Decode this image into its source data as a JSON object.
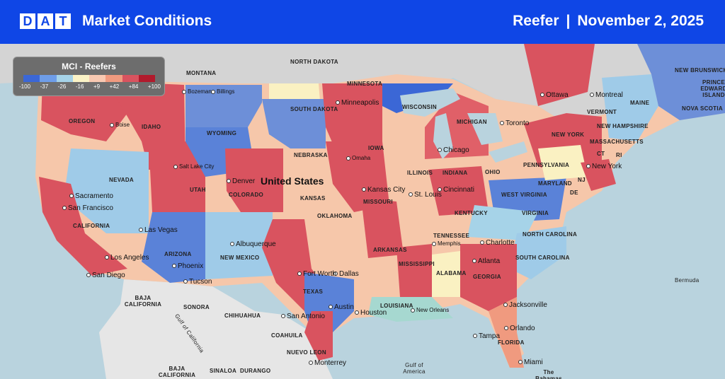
{
  "header": {
    "logo_letters": [
      "D",
      "A",
      "T"
    ],
    "title": "Market Conditions",
    "equipment": "Reefer",
    "separator": "|",
    "date": "November 2, 2025"
  },
  "legend": {
    "title": "MCI - Reefers",
    "ticks": [
      "-100",
      "-37",
      "-26",
      "-16",
      "+9",
      "+42",
      "+84",
      "+100"
    ],
    "colors": [
      "#3b67d6",
      "#6e9de8",
      "#a6d3e8",
      "#fbf3c6",
      "#f8c9b2",
      "#f09a7f",
      "#d9535f",
      "#b11a2c"
    ]
  },
  "map": {
    "country_label": "United States",
    "states": [
      "MONTANA",
      "NORTH DAKOTA",
      "MINNESOTA",
      "WISCONSIN",
      "MICHIGAN",
      "OREGON",
      "IDAHO",
      "WYOMING",
      "SOUTH DAKOTA",
      "IOWA",
      "NEBRASKA",
      "ILLINOIS",
      "INDIANA",
      "OHIO",
      "PENNSYLVANIA",
      "NEW YORK",
      "VERMONT",
      "NEW HAMPSHIRE",
      "MAINE",
      "MASSACHUSETTS",
      "CT",
      "RI",
      "NJ",
      "DE",
      "MARYLAND",
      "WEST VIRGINIA",
      "VIRGINIA",
      "KENTUCKY",
      "NORTH CAROLINA",
      "SOUTH CAROLINA",
      "TENNESSEE",
      "GEORGIA",
      "ALABAMA",
      "MISSISSIPPI",
      "LOUISIANA",
      "ARKANSAS",
      "MISSOURI",
      "KANSAS",
      "OKLAHOMA",
      "TEXAS",
      "NEW MEXICO",
      "ARIZONA",
      "COLORADO",
      "UTAH",
      "NEVADA",
      "CALIFORNIA",
      "FLORIDA",
      "NEW BRUNSWICK",
      "PRINCE EDWARD ISLAND",
      "NOVA SCOTIA",
      "BAJA CALIFORNIA",
      "SONORA",
      "CHIHUAHUA",
      "COAHUILA",
      "NUEVO LEON",
      "SINALOA",
      "DURANGO",
      "BAJA CALIFORNIA SUR",
      "Gulf of California",
      "Gulf of America",
      "Bermuda",
      "The Bahamas"
    ],
    "cities": [
      "Bozeman",
      "Billings",
      "Boise",
      "Salt Lake City",
      "Denver",
      "Sacramento",
      "San Francisco",
      "Las Vegas",
      "Los Angeles",
      "San Diego",
      "Phoenix",
      "Tucson",
      "Albuquerque",
      "Minneapolis",
      "Omaha",
      "Kansas City",
      "St. Louis",
      "Chicago",
      "Toronto",
      "Ottawa",
      "Montreal",
      "New York",
      "Cincinnati",
      "Memphis",
      "Charlotte",
      "Atlanta",
      "Jacksonville",
      "Orlando",
      "Tampa",
      "Miami",
      "New Orleans",
      "Houston",
      "Austin",
      "San Antonio",
      "Dallas",
      "Fort Worth",
      "Monterrey"
    ]
  }
}
